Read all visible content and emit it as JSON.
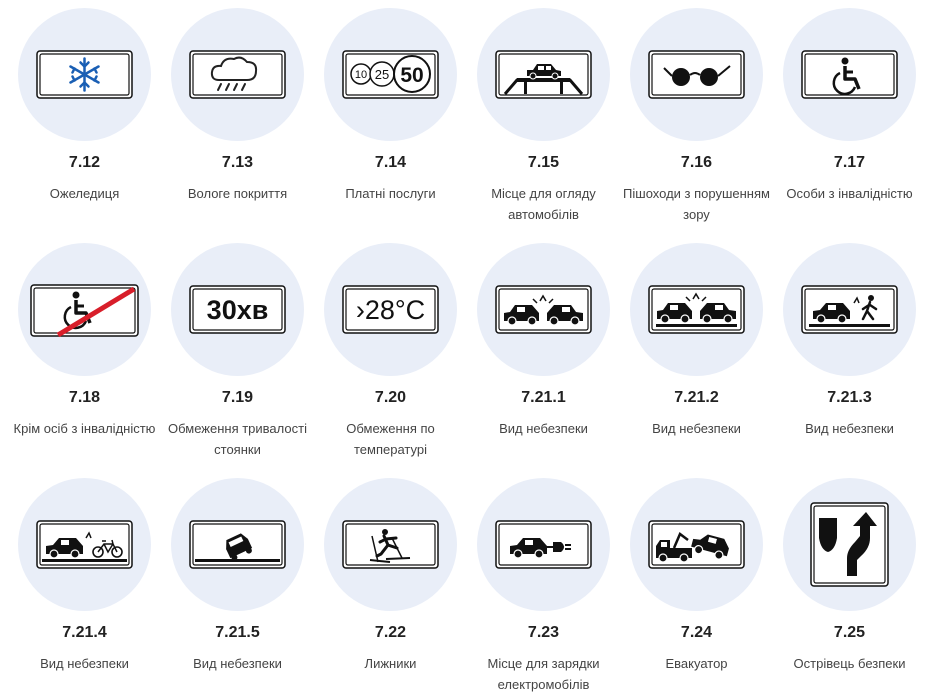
{
  "signs": [
    {
      "number": "7.12",
      "label": "Ожеледиця",
      "icon": "ice-sign-icon"
    },
    {
      "number": "7.13",
      "label": "Вологе покриття",
      "icon": "wet-surface-sign-icon"
    },
    {
      "number": "7.14",
      "label": "Платні послуги",
      "icon": "paid-services-sign-icon",
      "sign_text": [
        "10",
        "25",
        "50"
      ]
    },
    {
      "number": "7.15",
      "label": "Місце для огляду автомобілів",
      "icon": "inspection-place-sign-icon"
    },
    {
      "number": "7.16",
      "label": "Пішоходи з порушенням зору",
      "icon": "blind-pedestrians-sign-icon"
    },
    {
      "number": "7.17",
      "label": "Особи з інвалідністю",
      "icon": "disabled-persons-sign-icon"
    },
    {
      "number": "7.18",
      "label": "Крім осіб з інвалідністю",
      "icon": "except-disabled-sign-icon"
    },
    {
      "number": "7.19",
      "label": "Обмеження тривалості стоянки",
      "icon": "parking-duration-sign-icon",
      "sign_text": "30хв"
    },
    {
      "number": "7.20",
      "label": "Обмеження по температурі",
      "icon": "temperature-limit-sign-icon",
      "sign_text": "›28°C"
    },
    {
      "number": "7.21.1",
      "label": "Вид небезпеки",
      "icon": "danger-collision-sign-icon"
    },
    {
      "number": "7.21.2",
      "label": "Вид небезпеки",
      "icon": "danger-collision-road-sign-icon"
    },
    {
      "number": "7.21.3",
      "label": "Вид небезпеки",
      "icon": "danger-pedestrian-sign-icon"
    },
    {
      "number": "7.21.4",
      "label": "Вид небезпеки",
      "icon": "danger-bicycle-sign-icon"
    },
    {
      "number": "7.21.5",
      "label": "Вид небезпеки",
      "icon": "danger-overturn-sign-icon"
    },
    {
      "number": "7.22",
      "label": "Лижники",
      "icon": "skiers-sign-icon"
    },
    {
      "number": "7.23",
      "label": "Місце для зарядки електромобілів",
      "icon": "ev-charging-sign-icon"
    },
    {
      "number": "7.24",
      "label": "Евакуатор",
      "icon": "tow-truck-sign-icon"
    },
    {
      "number": "7.25",
      "label": "Острівець безпеки",
      "icon": "safety-island-sign-icon"
    }
  ]
}
